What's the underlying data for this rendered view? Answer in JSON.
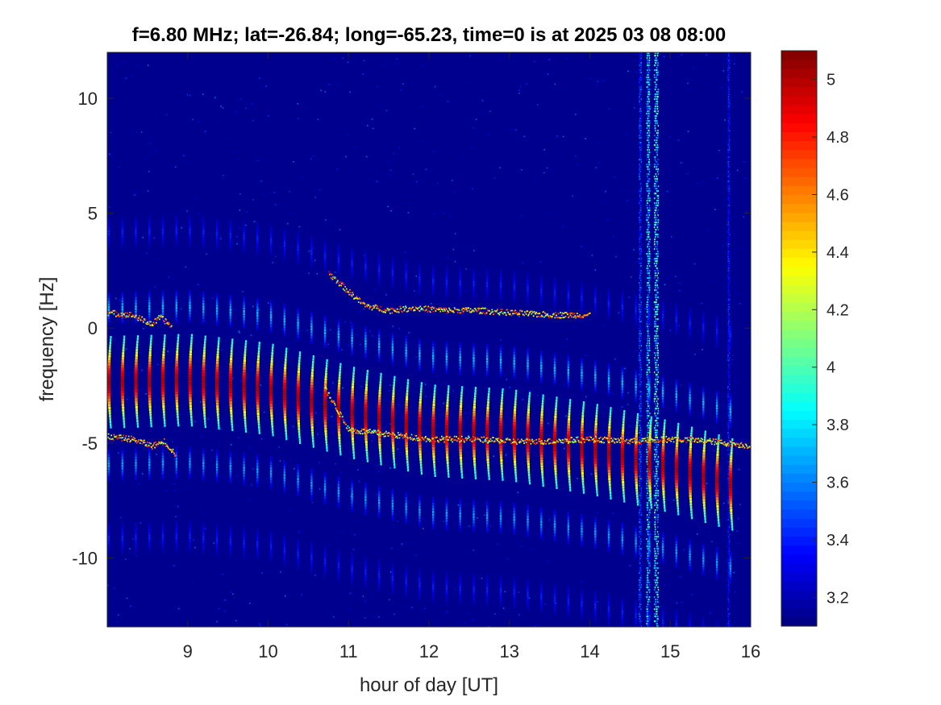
{
  "chart_data": {
    "type": "heatmap",
    "title": "f=6.80 MHz;  lat=-26.84; long=-65.23, time=0 is at 2025 03 08 08:00",
    "xlabel": "hour of day [UT]",
    "ylabel": "frequency [Hz]",
    "xlim": [
      8,
      16
    ],
    "ylim": [
      -13,
      12
    ],
    "xticks": [
      9,
      10,
      11,
      12,
      13,
      14,
      15,
      16
    ],
    "yticks": [
      -10,
      -5,
      0,
      5,
      10
    ],
    "colormap": "jet",
    "clim": [
      3.1,
      5.1
    ],
    "colorbar_ticks": [
      3.2,
      3.4,
      3.6,
      3.8,
      4,
      4.2,
      4.4,
      4.6,
      4.8,
      5
    ],
    "background_color": "#00008F",
    "features": {
      "periodic_streaks": {
        "description": "bright vertical streaks at roughly 10-minute spacing",
        "start_hour": 8.02,
        "end_hour": 15.85,
        "spacing_hours": 0.168,
        "centre_freq_track": [
          {
            "hour": 8.0,
            "freq": -2.3
          },
          {
            "hour": 9.0,
            "freq": -2.2
          },
          {
            "hour": 10.0,
            "freq": -2.6
          },
          {
            "hour": 11.0,
            "freq": -3.6
          },
          {
            "hour": 12.0,
            "freq": -4.4
          },
          {
            "hour": 13.0,
            "freq": -4.6
          },
          {
            "hour": 14.0,
            "freq": -5.2
          },
          {
            "hour": 15.0,
            "freq": -6.0
          },
          {
            "hour": 15.9,
            "freq": -6.9
          }
        ],
        "half_length_hz": 1.7,
        "peak_value": 5.0
      },
      "upper_trace": [
        {
          "hour": 8.0,
          "freq": 0.7
        },
        {
          "hour": 8.3,
          "freq": 0.6
        },
        {
          "hour": 8.55,
          "freq": 0.2
        },
        {
          "hour": 8.65,
          "freq": 0.5
        },
        {
          "hour": 8.8,
          "freq": 0.1
        },
        {
          "hour": 10.75,
          "freq": 2.4
        },
        {
          "hour": 11.0,
          "freq": 1.6
        },
        {
          "hour": 11.2,
          "freq": 1.0
        },
        {
          "hour": 11.5,
          "freq": 0.8
        },
        {
          "hour": 11.8,
          "freq": 0.9
        },
        {
          "hour": 12.2,
          "freq": 0.8
        },
        {
          "hour": 12.6,
          "freq": 0.8
        },
        {
          "hour": 13.0,
          "freq": 0.7
        },
        {
          "hour": 13.5,
          "freq": 0.6
        },
        {
          "hour": 14.0,
          "freq": 0.6
        }
      ],
      "lower_trace": [
        {
          "hour": 8.0,
          "freq": -4.7
        },
        {
          "hour": 8.3,
          "freq": -4.8
        },
        {
          "hour": 8.55,
          "freq": -5.1
        },
        {
          "hour": 8.7,
          "freq": -4.9
        },
        {
          "hour": 8.85,
          "freq": -5.5
        },
        {
          "hour": 10.7,
          "freq": -2.6
        },
        {
          "hour": 11.0,
          "freq": -4.4
        },
        {
          "hour": 11.5,
          "freq": -4.6
        },
        {
          "hour": 12.0,
          "freq": -4.8
        },
        {
          "hour": 12.5,
          "freq": -4.8
        },
        {
          "hour": 13.0,
          "freq": -4.9
        },
        {
          "hour": 13.5,
          "freq": -4.9
        },
        {
          "hour": 14.0,
          "freq": -4.8
        },
        {
          "hour": 14.5,
          "freq": -4.9
        },
        {
          "hour": 15.0,
          "freq": -4.8
        },
        {
          "hour": 15.5,
          "freq": -4.9
        },
        {
          "hour": 16.0,
          "freq": -5.1
        }
      ],
      "broadband_noise": [
        {
          "hour": 14.72,
          "width_h": 0.04,
          "strength": 0.9
        },
        {
          "hour": 14.82,
          "width_h": 0.05,
          "strength": 1.0
        },
        {
          "hour": 14.62,
          "width_h": 0.03,
          "strength": 0.5
        },
        {
          "hour": 15.72,
          "width_h": 0.02,
          "strength": 0.4
        }
      ]
    }
  }
}
